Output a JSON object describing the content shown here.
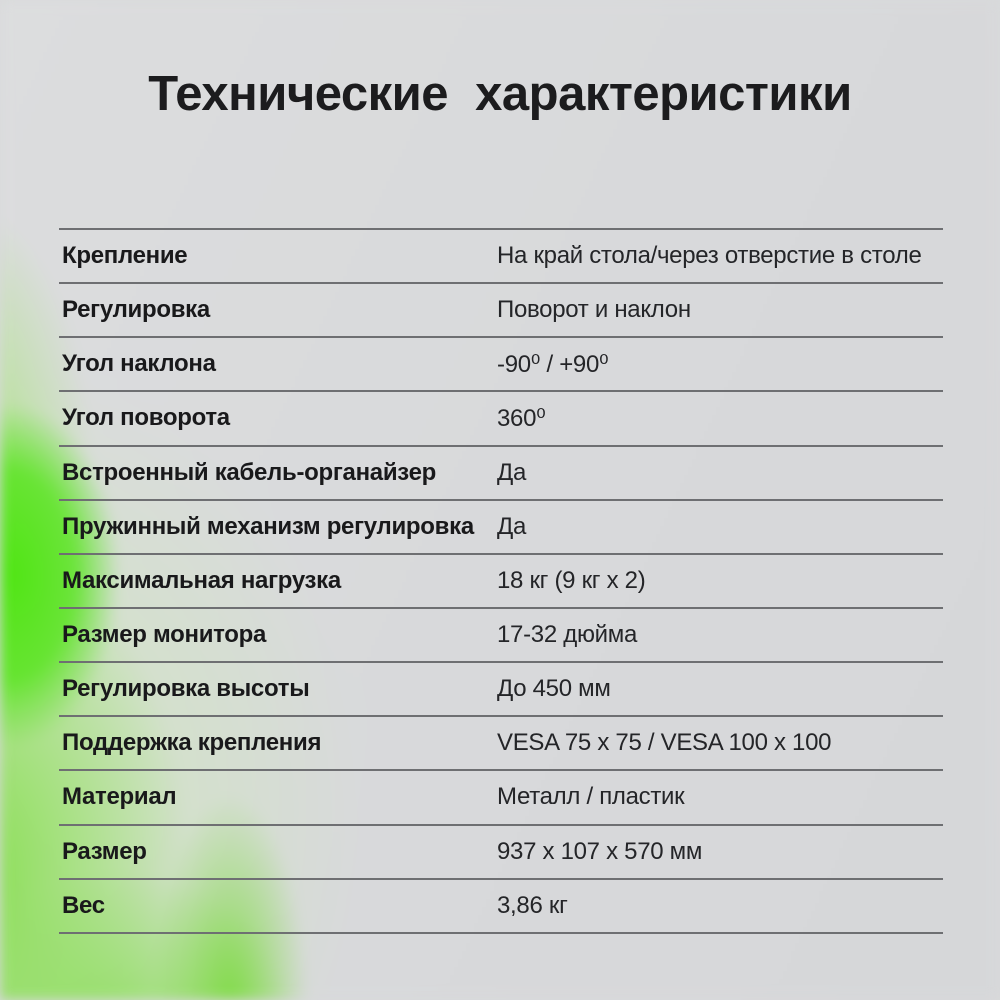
{
  "title": "Технические характеристики",
  "table": {
    "rows": [
      {
        "label": "Крепление",
        "value": "На край стола/через отверстие в столе"
      },
      {
        "label": "Регулировка",
        "value": "Поворот и наклон"
      },
      {
        "label": "Угол наклона",
        "value": "-90⁰ / +90⁰"
      },
      {
        "label": "Угол поворота",
        "value": "360⁰"
      },
      {
        "label": "Встроенный кабель-органайзер",
        "value": "Да"
      },
      {
        "label": "Пружинный механизм регулировка",
        "value": "Да"
      },
      {
        "label": "Максимальная нагрузка",
        "value": "18 кг (9 кг х 2)"
      },
      {
        "label": "Размер монитора",
        "value": "17-32 дюйма"
      },
      {
        "label": "Регулировка высоты",
        "value": "До 450 мм"
      },
      {
        "label": "Поддержка крепления",
        "value": "VESA 75 x 75 / VESA 100 x 100"
      },
      {
        "label": "Материал",
        "value": "Металл / пластик"
      },
      {
        "label": "Размер",
        "value": "937 х 107 х 570 мм"
      },
      {
        "label": "Вес",
        "value": "3,86 кг"
      }
    ]
  },
  "colors": {
    "background": "#d9dadb",
    "accent_green": "#50e514",
    "divider": "#6e6f72",
    "title_text": "#1c1c1e",
    "label_text": "#19191b",
    "value_text": "#242528"
  }
}
